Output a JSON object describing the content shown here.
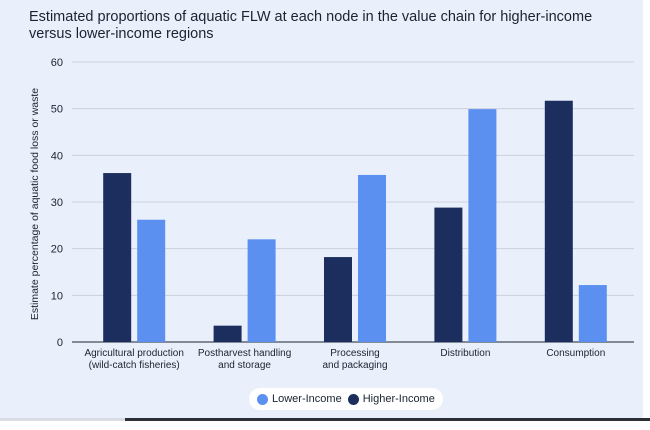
{
  "chart_data": {
    "type": "bar",
    "title": "Estimated proportions of aquatic FLW at each node in the value chain for higher-income versus lower-income regions",
    "ylabel": "Estimate percentage of aquatic food loss or waste",
    "xlabel": "",
    "ylim": [
      0,
      60
    ],
    "yticks": [
      0,
      10,
      20,
      30,
      40,
      50,
      60
    ],
    "grid": true,
    "legend_position": "bottom-center",
    "categories": [
      [
        "Agricultural production",
        "(wild-catch fisheries)"
      ],
      [
        "Postharvest handling",
        "and storage"
      ],
      [
        "Processing",
        "and packaging"
      ],
      [
        "Distribution"
      ],
      [
        "Consumption"
      ]
    ],
    "series": [
      {
        "name": "Higher-Income",
        "color": "#1b2e5e",
        "values": [
          36.2,
          3.5,
          18.2,
          28.8,
          51.7
        ]
      },
      {
        "name": "Lower-Income",
        "color": "#5b8ff0",
        "values": [
          26.2,
          22.0,
          35.8,
          49.9,
          12.2
        ]
      }
    ],
    "legend_order": [
      1,
      0
    ]
  }
}
